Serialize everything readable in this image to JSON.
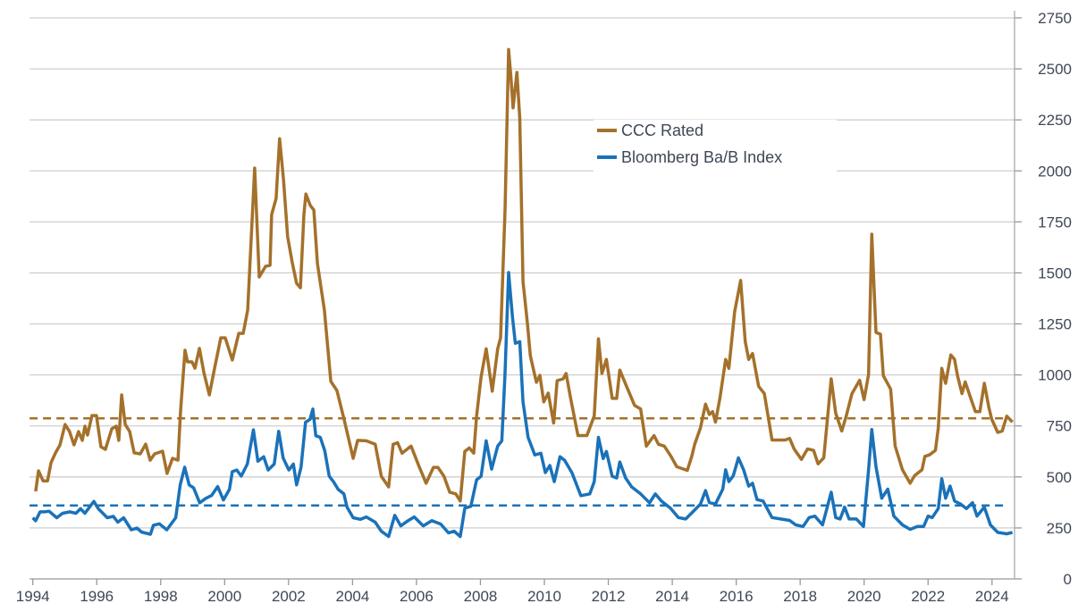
{
  "chart_data": {
    "type": "line",
    "title": "",
    "xlabel": "",
    "ylabel": "",
    "xlim": [
      1993.9,
      2024.75
    ],
    "ylim": [
      0,
      2750
    ],
    "y_axis_position": "right",
    "x_ticks": [
      1994,
      1996,
      1998,
      2000,
      2002,
      2004,
      2006,
      2008,
      2010,
      2012,
      2014,
      2016,
      2018,
      2020,
      2022,
      2024
    ],
    "x_tick_labels": [
      "1994",
      "1996",
      "1998",
      "2000",
      "2002",
      "2004",
      "2006",
      "2008",
      "2010",
      "2012",
      "2014",
      "2016",
      "2018",
      "2020",
      "2022",
      "2024"
    ],
    "y_ticks": [
      0,
      250,
      500,
      750,
      1000,
      1250,
      1500,
      1750,
      2000,
      2250,
      2500,
      2750
    ],
    "y_tick_labels": [
      "0",
      "250",
      "500",
      "750",
      "1000",
      "1250",
      "1500",
      "1750",
      "2000",
      "2250",
      "2500",
      "2750"
    ],
    "grid": "horizontal",
    "legend_position": "top-center",
    "series": [
      {
        "name": "CCC Rated",
        "color": "#a4712b",
        "average": 787,
        "x": [
          1994.09,
          1994.18,
          1994.32,
          1994.46,
          1994.57,
          1994.71,
          1994.85,
          1995.01,
          1995.15,
          1995.29,
          1995.43,
          1995.55,
          1995.63,
          1995.71,
          1995.85,
          1995.99,
          1996.13,
          1996.27,
          1996.47,
          1996.61,
          1996.69,
          1996.78,
          1996.89,
          1997.03,
          1997.17,
          1997.36,
          1997.53,
          1997.67,
          1997.81,
          1998.06,
          1998.2,
          1998.37,
          1998.54,
          1998.62,
          1998.76,
          1998.84,
          1998.98,
          1999.07,
          1999.21,
          1999.35,
          1999.52,
          1999.68,
          1999.88,
          2000.02,
          2000.24,
          2000.44,
          2000.58,
          2000.72,
          2000.8,
          2000.94,
          2001.08,
          2001.28,
          2001.42,
          2001.47,
          2001.61,
          2001.72,
          2001.84,
          2001.97,
          2002.11,
          2002.25,
          2002.37,
          2002.48,
          2002.54,
          2002.68,
          2002.79,
          2002.9,
          2003.12,
          2003.32,
          2003.51,
          2003.74,
          2004.02,
          2004.16,
          2004.43,
          2004.71,
          2004.9,
          2005.13,
          2005.27,
          2005.41,
          2005.55,
          2005.83,
          2006.07,
          2006.3,
          2006.53,
          2006.67,
          2006.86,
          2007.04,
          2007.23,
          2007.37,
          2007.51,
          2007.65,
          2007.79,
          2007.88,
          2008.02,
          2008.18,
          2008.37,
          2008.54,
          2008.63,
          2008.77,
          2008.88,
          2008.95,
          2009.02,
          2009.14,
          2009.23,
          2009.33,
          2009.47,
          2009.56,
          2009.75,
          2009.86,
          2009.98,
          2010.12,
          2010.29,
          2010.4,
          2010.59,
          2010.68,
          2010.82,
          2011.05,
          2011.33,
          2011.56,
          2011.69,
          2011.8,
          2011.94,
          2012.12,
          2012.26,
          2012.36,
          2012.54,
          2012.82,
          2013.01,
          2013.19,
          2013.43,
          2013.57,
          2013.75,
          2013.96,
          2014.14,
          2014.47,
          2014.61,
          2014.7,
          2014.88,
          2015.04,
          2015.16,
          2015.26,
          2015.35,
          2015.49,
          2015.67,
          2015.77,
          2015.95,
          2016.14,
          2016.28,
          2016.39,
          2016.51,
          2016.7,
          2016.88,
          2017.12,
          2017.35,
          2017.53,
          2017.67,
          2017.81,
          2018.04,
          2018.23,
          2018.42,
          2018.56,
          2018.74,
          2018.97,
          2019.11,
          2019.3,
          2019.44,
          2019.62,
          2019.86,
          2020.0,
          2020.14,
          2020.24,
          2020.37,
          2020.51,
          2020.6,
          2020.83,
          2020.97,
          2021.2,
          2021.44,
          2021.58,
          2021.81,
          2021.9,
          2022.04,
          2022.23,
          2022.32,
          2022.43,
          2022.55,
          2022.71,
          2022.83,
          2022.92,
          2023.06,
          2023.16,
          2023.3,
          2023.48,
          2023.62,
          2023.76,
          2023.9,
          2023.99,
          2024.18,
          2024.32,
          2024.46,
          2024.64
        ],
        "y": [
          429,
          530,
          481,
          481,
          570,
          618,
          657,
          757,
          722,
          657,
          722,
          679,
          749,
          705,
          801,
          801,
          648,
          635,
          736,
          749,
          679,
          902,
          757,
          722,
          618,
          613,
          661,
          582,
          613,
          626,
          517,
          591,
          582,
          823,
          1121,
          1064,
          1064,
          1033,
          1130,
          1011,
          902,
          1029,
          1182,
          1182,
          1073,
          1204,
          1204,
          1318,
          1567,
          2014,
          1480,
          1532,
          1537,
          1786,
          1865,
          2158,
          1961,
          1677,
          1554,
          1449,
          1427,
          1786,
          1887,
          1830,
          1808,
          1546,
          1318,
          968,
          924,
          779,
          591,
          679,
          677,
          660,
          503,
          451,
          660,
          668,
          616,
          651,
          556,
          469,
          547,
          547,
          503,
          425,
          417,
          382,
          625,
          642,
          616,
          799,
          990,
          1128,
          920,
          1128,
          1181,
          1806,
          2595,
          2465,
          2309,
          2483,
          2257,
          1458,
          1250,
          1094,
          964,
          998,
          868,
          911,
          764,
          972,
          981,
          1007,
          885,
          703,
          703,
          799,
          1177,
          1007,
          1076,
          885,
          885,
          1024,
          955,
          851,
          833,
          651,
          703,
          660,
          651,
          601,
          550,
          532,
          601,
          659,
          740,
          857,
          806,
          820,
          769,
          886,
          1076,
          1032,
          1310,
          1463,
          1164,
          1076,
          1105,
          944,
          908,
          681,
          681,
          681,
          689,
          637,
          586,
          637,
          630,
          564,
          594,
          981,
          813,
          725,
          798,
          908,
          974,
          879,
          1003,
          1690,
          1208,
          1200,
          996,
          930,
          652,
          535,
          469,
          506,
          535,
          601,
          608,
          630,
          740,
          1032,
          959,
          1098,
          1076,
          996,
          908,
          966,
          901,
          820,
          820,
          959,
          842,
          784,
          718,
          725,
          798,
          769
        ]
      },
      {
        "name": "Bloomberg Ba/B Index",
        "color": "#1a72b9",
        "average": 360,
        "x": [
          1994.0,
          1994.09,
          1994.23,
          1994.37,
          1994.51,
          1994.75,
          1994.93,
          1995.16,
          1995.35,
          1995.49,
          1995.63,
          1995.77,
          1995.91,
          1996.05,
          1996.33,
          1996.52,
          1996.66,
          1996.84,
          1997.08,
          1997.26,
          1997.4,
          1997.68,
          1997.77,
          1997.96,
          1998.19,
          1998.47,
          1998.61,
          1998.75,
          1998.89,
          1999.03,
          1999.22,
          1999.41,
          1999.59,
          1999.78,
          1999.96,
          2000.15,
          2000.24,
          2000.38,
          2000.52,
          2000.71,
          2000.9,
          2001.04,
          2001.22,
          2001.36,
          2001.55,
          2001.69,
          2001.83,
          2002.01,
          2002.15,
          2002.25,
          2002.39,
          2002.53,
          2002.67,
          2002.76,
          2002.85,
          2002.99,
          2003.13,
          2003.27,
          2003.41,
          2003.55,
          2003.73,
          2003.83,
          2004.02,
          2004.25,
          2004.43,
          2004.71,
          2004.9,
          2005.13,
          2005.32,
          2005.51,
          2005.74,
          2005.93,
          2006.21,
          2006.48,
          2006.76,
          2007.0,
          2007.18,
          2007.37,
          2007.51,
          2007.7,
          2007.88,
          2008.02,
          2008.18,
          2008.35,
          2008.54,
          2008.67,
          2008.77,
          2008.88,
          2009.0,
          2009.09,
          2009.23,
          2009.33,
          2009.49,
          2009.7,
          2009.89,
          2010.03,
          2010.17,
          2010.31,
          2010.49,
          2010.63,
          2010.86,
          2011.14,
          2011.42,
          2011.56,
          2011.69,
          2011.84,
          2011.94,
          2012.12,
          2012.26,
          2012.36,
          2012.54,
          2012.73,
          2013.01,
          2013.29,
          2013.47,
          2013.66,
          2013.94,
          2014.19,
          2014.42,
          2014.65,
          2014.88,
          2015.04,
          2015.16,
          2015.35,
          2015.58,
          2015.67,
          2015.77,
          2015.91,
          2016.07,
          2016.23,
          2016.39,
          2016.51,
          2016.65,
          2016.84,
          2017.12,
          2017.39,
          2017.67,
          2017.86,
          2018.09,
          2018.28,
          2018.46,
          2018.7,
          2018.97,
          2019.11,
          2019.25,
          2019.39,
          2019.53,
          2019.76,
          2019.98,
          2020.14,
          2020.24,
          2020.37,
          2020.55,
          2020.74,
          2020.93,
          2021.2,
          2021.44,
          2021.67,
          2021.86,
          2022.0,
          2022.13,
          2022.32,
          2022.43,
          2022.55,
          2022.69,
          2022.83,
          2023.02,
          2023.2,
          2023.39,
          2023.53,
          2023.76,
          2023.95,
          2024.18,
          2024.46,
          2024.64
        ],
        "y": [
          300,
          285,
          329,
          329,
          332,
          300,
          322,
          329,
          322,
          344,
          322,
          351,
          380,
          344,
          300,
          307,
          278,
          300,
          241,
          249,
          230,
          219,
          263,
          270,
          241,
          300,
          461,
          548,
          461,
          446,
          373,
          395,
          409,
          453,
          387,
          439,
          526,
          534,
          504,
          563,
          731,
          577,
          599,
          534,
          563,
          724,
          592,
          534,
          563,
          461,
          548,
          768,
          782,
          833,
          702,
          694,
          629,
          504,
          475,
          439,
          417,
          351,
          300,
          292,
          304,
          278,
          234,
          208,
          312,
          260,
          286,
          304,
          260,
          286,
          269,
          226,
          234,
          208,
          347,
          356,
          486,
          503,
          677,
          538,
          651,
          677,
          1007,
          1502,
          1285,
          1155,
          1163,
          868,
          694,
          608,
          616,
          521,
          556,
          477,
          599,
          582,
          521,
          408,
          417,
          477,
          694,
          590,
          625,
          503,
          495,
          573,
          495,
          451,
          417,
          373,
          417,
          382,
          347,
          301,
          294,
          330,
          367,
          433,
          374,
          367,
          440,
          535,
          477,
          506,
          594,
          535,
          455,
          469,
          389,
          382,
          301,
          294,
          287,
          265,
          257,
          301,
          308,
          265,
          425,
          301,
          294,
          352,
          294,
          294,
          257,
          535,
          732,
          550,
          396,
          440,
          308,
          265,
          243,
          257,
          257,
          308,
          301,
          345,
          491,
          396,
          455,
          382,
          367,
          345,
          374,
          308,
          352,
          265,
          228,
          221,
          228
        ]
      }
    ]
  }
}
